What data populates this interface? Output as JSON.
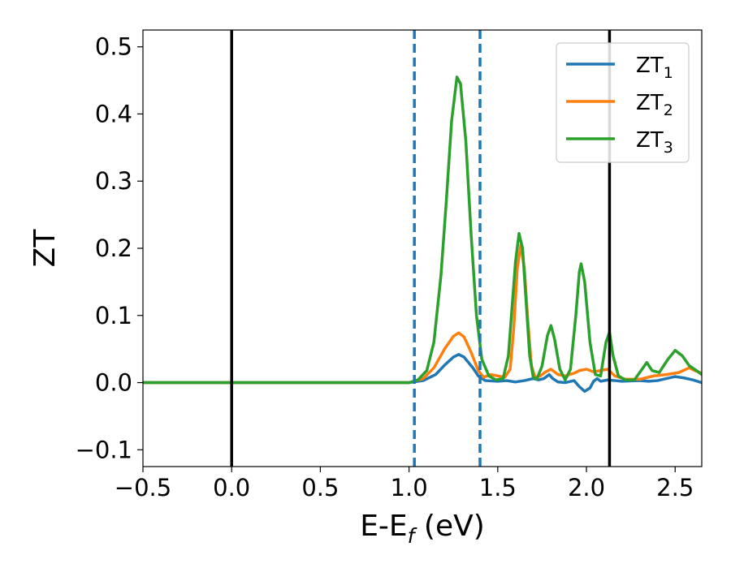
{
  "chart_data": {
    "type": "line",
    "xlabel": "E-E",
    "xlabel_sub": "f",
    "xlabel_unit": " (eV)",
    "ylabel": "ZT",
    "xlim": [
      -0.5,
      2.65
    ],
    "ylim": [
      -0.125,
      0.525
    ],
    "x_ticks": [
      -0.5,
      0.0,
      0.5,
      1.0,
      1.5,
      2.0,
      2.5
    ],
    "x_tick_labels": [
      "−0.5",
      "0.0",
      "0.5",
      "1.0",
      "1.5",
      "2.0",
      "2.5"
    ],
    "y_ticks": [
      -0.1,
      0.0,
      0.1,
      0.2,
      0.3,
      0.4,
      0.5
    ],
    "y_tick_labels": [
      "−0.1",
      "0.0",
      "0.1",
      "0.2",
      "0.3",
      "0.4",
      "0.5"
    ],
    "grid": false,
    "legend_position": "top-right",
    "vertical_lines": [
      {
        "x": 0.0,
        "style": "solid",
        "color": "#000000"
      },
      {
        "x": 2.13,
        "style": "solid",
        "color": "#000000"
      },
      {
        "x": 1.03,
        "style": "dashed",
        "color": "#1f77b4"
      },
      {
        "x": 1.4,
        "style": "dashed",
        "color": "#1f77b4"
      }
    ],
    "series": [
      {
        "name": "ZT",
        "name_sub": "1",
        "color": "#1f77b4",
        "points": [
          [
            -0.5,
            0.0
          ],
          [
            1.0,
            0.0
          ],
          [
            1.08,
            0.003
          ],
          [
            1.15,
            0.012
          ],
          [
            1.2,
            0.026
          ],
          [
            1.25,
            0.038
          ],
          [
            1.28,
            0.042
          ],
          [
            1.31,
            0.038
          ],
          [
            1.36,
            0.022
          ],
          [
            1.39,
            0.01
          ],
          [
            1.43,
            0.003
          ],
          [
            1.5,
            0.002
          ],
          [
            1.55,
            0.003
          ],
          [
            1.6,
            0.001
          ],
          [
            1.65,
            0.003
          ],
          [
            1.7,
            0.006
          ],
          [
            1.73,
            0.004
          ],
          [
            1.76,
            0.006
          ],
          [
            1.79,
            0.012
          ],
          [
            1.81,
            0.006
          ],
          [
            1.84,
            0.001
          ],
          [
            1.88,
            0.0
          ],
          [
            1.93,
            0.003
          ],
          [
            1.96,
            -0.006
          ],
          [
            1.99,
            -0.013
          ],
          [
            2.02,
            -0.008
          ],
          [
            2.04,
            0.002
          ],
          [
            2.06,
            0.006
          ],
          [
            2.08,
            0.002
          ],
          [
            2.12,
            0.004
          ],
          [
            2.16,
            0.003
          ],
          [
            2.2,
            0.002
          ],
          [
            2.3,
            0.003
          ],
          [
            2.35,
            0.002
          ],
          [
            2.4,
            0.003
          ],
          [
            2.45,
            0.006
          ],
          [
            2.5,
            0.009
          ],
          [
            2.55,
            0.007
          ],
          [
            2.6,
            0.004
          ],
          [
            2.65,
            0.0
          ]
        ]
      },
      {
        "name": "ZT",
        "name_sub": "2",
        "color": "#ff7f0e",
        "points": [
          [
            -0.5,
            0.0
          ],
          [
            1.0,
            0.0
          ],
          [
            1.08,
            0.006
          ],
          [
            1.14,
            0.022
          ],
          [
            1.2,
            0.05
          ],
          [
            1.25,
            0.069
          ],
          [
            1.28,
            0.074
          ],
          [
            1.31,
            0.068
          ],
          [
            1.35,
            0.045
          ],
          [
            1.39,
            0.018
          ],
          [
            1.42,
            0.008
          ],
          [
            1.46,
            0.012
          ],
          [
            1.5,
            0.01
          ],
          [
            1.54,
            0.008
          ],
          [
            1.57,
            0.02
          ],
          [
            1.59,
            0.08
          ],
          [
            1.61,
            0.17
          ],
          [
            1.63,
            0.205
          ],
          [
            1.65,
            0.17
          ],
          [
            1.67,
            0.09
          ],
          [
            1.69,
            0.025
          ],
          [
            1.71,
            0.008
          ],
          [
            1.74,
            0.01
          ],
          [
            1.77,
            0.016
          ],
          [
            1.8,
            0.02
          ],
          [
            1.84,
            0.012
          ],
          [
            1.88,
            0.01
          ],
          [
            1.93,
            0.014
          ],
          [
            1.96,
            0.018
          ],
          [
            2.0,
            0.02
          ],
          [
            2.04,
            0.016
          ],
          [
            2.08,
            0.018
          ],
          [
            2.12,
            0.02
          ],
          [
            2.16,
            0.01
          ],
          [
            2.22,
            0.005
          ],
          [
            2.3,
            0.005
          ],
          [
            2.38,
            0.01
          ],
          [
            2.45,
            0.012
          ],
          [
            2.52,
            0.015
          ],
          [
            2.58,
            0.022
          ],
          [
            2.61,
            0.018
          ],
          [
            2.65,
            0.014
          ]
        ]
      },
      {
        "name": "ZT",
        "name_sub": "3",
        "color": "#2ca02c",
        "points": [
          [
            -0.5,
            0.0
          ],
          [
            1.0,
            0.0
          ],
          [
            1.05,
            0.004
          ],
          [
            1.1,
            0.018
          ],
          [
            1.14,
            0.06
          ],
          [
            1.18,
            0.16
          ],
          [
            1.21,
            0.27
          ],
          [
            1.24,
            0.39
          ],
          [
            1.27,
            0.455
          ],
          [
            1.29,
            0.445
          ],
          [
            1.32,
            0.36
          ],
          [
            1.35,
            0.22
          ],
          [
            1.38,
            0.1
          ],
          [
            1.41,
            0.035
          ],
          [
            1.45,
            0.01
          ],
          [
            1.49,
            0.004
          ],
          [
            1.53,
            0.006
          ],
          [
            1.56,
            0.04
          ],
          [
            1.58,
            0.11
          ],
          [
            1.6,
            0.18
          ],
          [
            1.62,
            0.222
          ],
          [
            1.64,
            0.2
          ],
          [
            1.66,
            0.12
          ],
          [
            1.68,
            0.04
          ],
          [
            1.7,
            0.008
          ],
          [
            1.72,
            0.005
          ],
          [
            1.75,
            0.025
          ],
          [
            1.78,
            0.07
          ],
          [
            1.8,
            0.085
          ],
          [
            1.82,
            0.065
          ],
          [
            1.85,
            0.02
          ],
          [
            1.88,
            0.004
          ],
          [
            1.91,
            0.02
          ],
          [
            1.94,
            0.1
          ],
          [
            1.96,
            0.165
          ],
          [
            1.97,
            0.177
          ],
          [
            1.99,
            0.15
          ],
          [
            2.02,
            0.06
          ],
          [
            2.05,
            0.012
          ],
          [
            2.08,
            0.01
          ],
          [
            2.11,
            0.06
          ],
          [
            2.13,
            0.075
          ],
          [
            2.15,
            0.04
          ],
          [
            2.18,
            0.01
          ],
          [
            2.22,
            0.004
          ],
          [
            2.27,
            0.004
          ],
          [
            2.3,
            0.015
          ],
          [
            2.34,
            0.03
          ],
          [
            2.37,
            0.018
          ],
          [
            2.41,
            0.015
          ],
          [
            2.46,
            0.035
          ],
          [
            2.5,
            0.048
          ],
          [
            2.54,
            0.04
          ],
          [
            2.58,
            0.025
          ],
          [
            2.62,
            0.018
          ],
          [
            2.65,
            0.012
          ]
        ]
      }
    ]
  }
}
